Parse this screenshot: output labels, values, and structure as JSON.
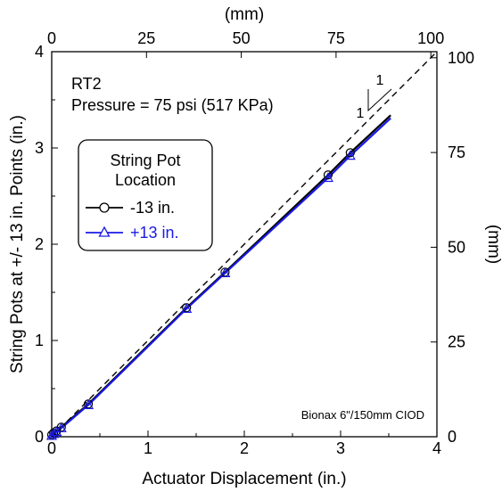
{
  "chart_data": {
    "type": "line",
    "xlabel": "Actuator Displacement (in.)",
    "ylabel": "String Pots at +/- 13 in. Points (in.)",
    "top_axis_label": "(mm)",
    "right_axis_label": "(mm)",
    "xlim": [
      0,
      4
    ],
    "ylim": [
      0,
      4
    ],
    "x_ticks": [
      "0",
      "1",
      "2",
      "3",
      "4"
    ],
    "y_ticks": [
      "0",
      "1",
      "2",
      "3",
      "4"
    ],
    "top_ticks": [
      "0",
      "25",
      "50",
      "75",
      "100"
    ],
    "right_ticks": [
      "0",
      "25",
      "50",
      "75",
      "100"
    ],
    "mm_per_in": 25.4,
    "grid": false,
    "annotations": {
      "test_id": "RT2",
      "pressure": "Pressure = 75 psi (517 KPa)",
      "instrument": "Bionax 6\"/150mm CIOD",
      "slope_run": "1",
      "slope_rise": "1"
    },
    "legend": {
      "title_line1": "String Pot",
      "title_line2": "Location",
      "placement": "upper-left"
    },
    "reference_line": {
      "style": "dashed",
      "slope": 1,
      "x": [
        0,
        4
      ],
      "y": [
        0,
        4
      ],
      "color": "#000000"
    },
    "series": [
      {
        "name": "-13 in.",
        "marker": "circle",
        "color": "#000000",
        "x": [
          0,
          0.02,
          0.05,
          0.1,
          0.38,
          1.4,
          1.8,
          2.87,
          3.1,
          3.52
        ],
        "y": [
          0.02,
          0.04,
          0.06,
          0.1,
          0.34,
          1.34,
          1.71,
          2.72,
          2.95,
          3.34
        ],
        "marker_x": [
          0,
          0.02,
          0.05,
          0.1,
          0.38,
          1.4,
          1.8,
          2.87,
          3.1
        ],
        "marker_y": [
          0.02,
          0.04,
          0.06,
          0.1,
          0.34,
          1.34,
          1.71,
          2.72,
          2.95
        ]
      },
      {
        "name": "+13 in.",
        "marker": "triangle",
        "color": "#1a1ae6",
        "x": [
          0,
          0.02,
          0.05,
          0.1,
          0.38,
          1.4,
          1.8,
          2.87,
          3.1,
          3.52
        ],
        "y": [
          0.01,
          0.03,
          0.05,
          0.09,
          0.33,
          1.33,
          1.7,
          2.69,
          2.92,
          3.31
        ],
        "marker_x": [
          0,
          0.02,
          0.05,
          0.1,
          0.38,
          1.4,
          1.8,
          2.87,
          3.1
        ],
        "marker_y": [
          0.01,
          0.03,
          0.05,
          0.09,
          0.33,
          1.33,
          1.7,
          2.69,
          2.92
        ]
      }
    ]
  }
}
